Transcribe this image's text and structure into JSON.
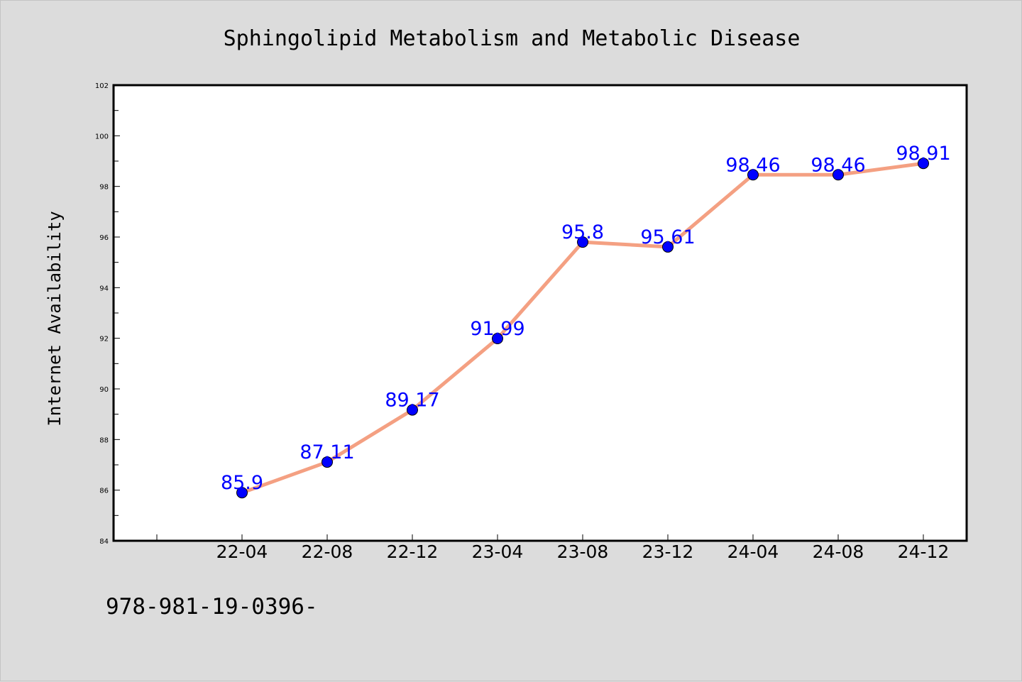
{
  "chart_data": {
    "type": "line",
    "title": "Sphingolipid Metabolism and Metabolic Disease",
    "xlabel": "",
    "ylabel": "Internet Availability",
    "categories": [
      "22-04",
      "22-08",
      "22-12",
      "23-04",
      "23-08",
      "23-12",
      "24-04",
      "24-08",
      "24-12"
    ],
    "series": [
      {
        "values": [
          85.9,
          87.11,
          89.17,
          91.99,
          95.8,
          95.61,
          98.46,
          98.46,
          98.91
        ],
        "labels": [
          "85.9",
          "87.11",
          "89.17",
          "91.99",
          "95.8",
          "95.61",
          "98.46",
          "98.46",
          "98.91"
        ],
        "line_color": "#f4a082",
        "marker_color": "#0000ff"
      }
    ],
    "yticks": [
      "84",
      "86",
      "88",
      "90",
      "92",
      "94",
      "96",
      "98",
      "100",
      "102"
    ],
    "ylim": [
      84,
      102
    ],
    "grid": false,
    "legend": "none"
  },
  "footer": {
    "text": "978-981-19-0396-"
  },
  "colors": {
    "background": "#dcdcdc",
    "plot_background": "#ffffff",
    "axis": "#000000",
    "line": "#f4a082",
    "marker": "#0000ff",
    "data_label": "#0000ff"
  }
}
